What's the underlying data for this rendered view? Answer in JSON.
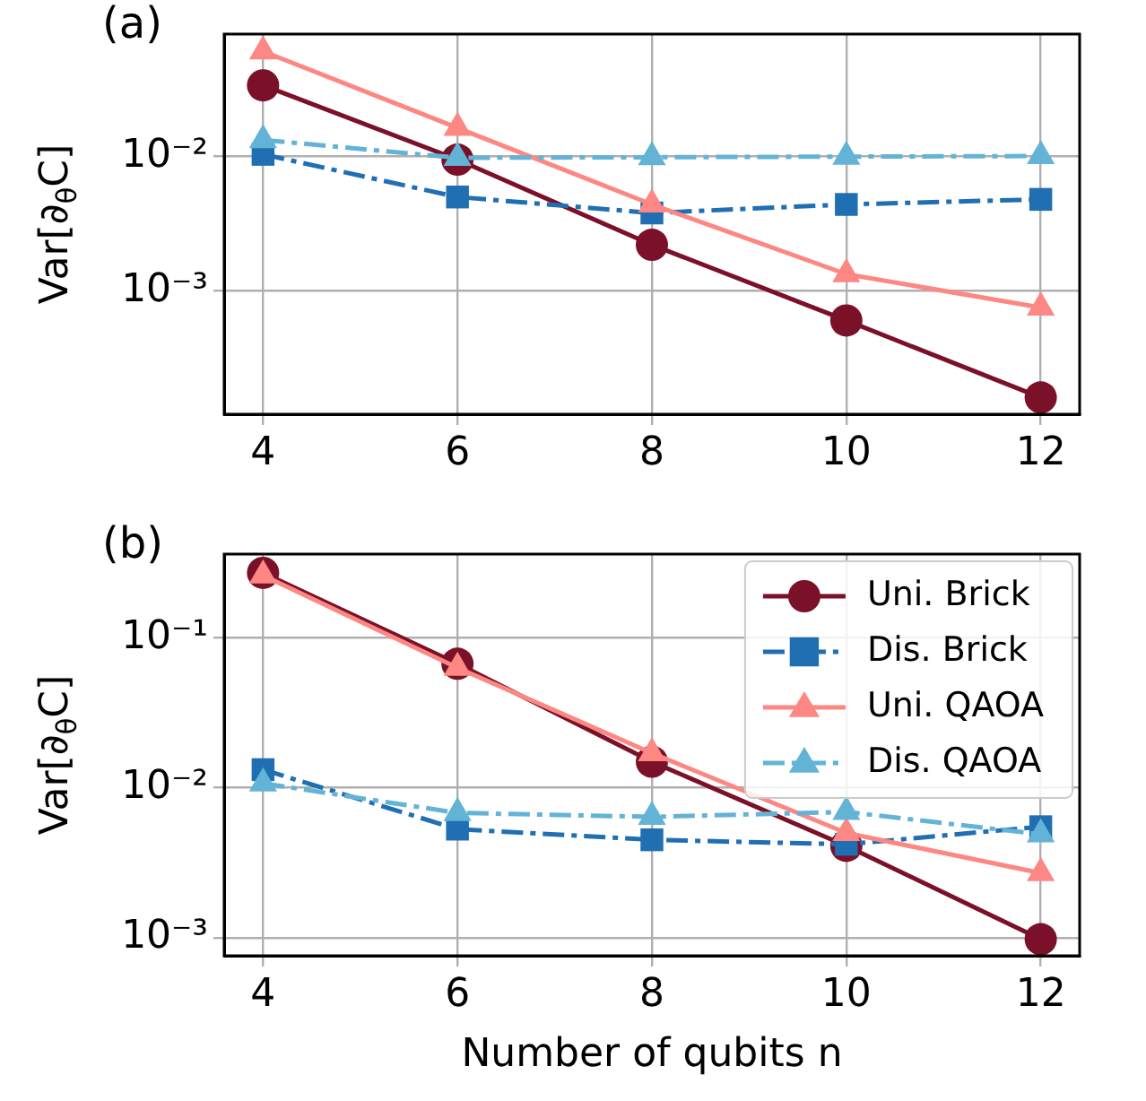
{
  "chart_data": [
    {
      "type": "line",
      "title": "(a)",
      "ylabel": "Var[∂$_{θ}$C]",
      "x": [
        4,
        6,
        8,
        10,
        12
      ],
      "xlim": [
        3.6,
        12.4
      ],
      "xticks": [
        4,
        6,
        8,
        10,
        12
      ],
      "ylim": [
        0.00012,
        0.082
      ],
      "yticks": [
        {
          "value": 0.01,
          "label": "10⁻²"
        },
        {
          "value": 0.001,
          "label": "10⁻³"
        }
      ],
      "log": true,
      "grid": true,
      "legend": false,
      "series": [
        {
          "color": "#7b1128",
          "marker": "circle",
          "line_style": "solid",
          "values": [
            0.034,
            0.0095,
            0.0022,
            0.0006,
            0.00016
          ]
        },
        {
          "color": "#1f6fb2",
          "marker": "square",
          "line_style": "dashed",
          "values": [
            0.0104,
            0.005,
            0.0038,
            0.0044,
            0.0048
          ]
        },
        {
          "color": "#fc8783",
          "marker": "triangle",
          "line_style": "solid",
          "values": [
            0.061,
            0.0164,
            0.0044,
            0.00133,
            0.00075
          ]
        },
        {
          "color": "#63b3d6",
          "marker": "triangle",
          "line_style": "dashed",
          "values": [
            0.0133,
            0.0098,
            0.0099,
            0.01,
            0.0101
          ]
        }
      ]
    },
    {
      "type": "line",
      "title": "(b)",
      "xlabel": "Number of qubits n",
      "ylabel": "Var[∂$_{θ}$C]",
      "x": [
        4,
        6,
        8,
        10,
        12
      ],
      "xlim": [
        3.6,
        12.4
      ],
      "xticks": [
        4,
        6,
        8,
        10,
        12
      ],
      "ylim": [
        0.00076,
        0.36
      ],
      "yticks": [
        {
          "value": 0.1,
          "label": "10⁻¹"
        },
        {
          "value": 0.01,
          "label": "10⁻²"
        },
        {
          "value": 0.001,
          "label": "10⁻³"
        }
      ],
      "log": true,
      "grid": true,
      "legend": "top right",
      "series": [
        {
          "name": "Uni. Brick",
          "color": "#7b1128",
          "marker": "circle",
          "line_style": "solid",
          "values": [
            0.27,
            0.067,
            0.0149,
            0.0041,
            0.00098
          ]
        },
        {
          "name": "Dis. Brick",
          "color": "#1f6fb2",
          "marker": "square",
          "line_style": "dashed",
          "values": [
            0.0132,
            0.0053,
            0.0045,
            0.0042,
            0.0055
          ]
        },
        {
          "name": "Uni. QAOA",
          "color": "#fc8783",
          "marker": "triangle",
          "line_style": "solid",
          "values": [
            0.26,
            0.063,
            0.017,
            0.005,
            0.0027
          ]
        },
        {
          "name": "Dis. QAOA",
          "color": "#63b3d6",
          "marker": "triangle",
          "line_style": "dashed",
          "values": [
            0.0107,
            0.0068,
            0.0064,
            0.0069,
            0.0049
          ]
        }
      ]
    }
  ]
}
